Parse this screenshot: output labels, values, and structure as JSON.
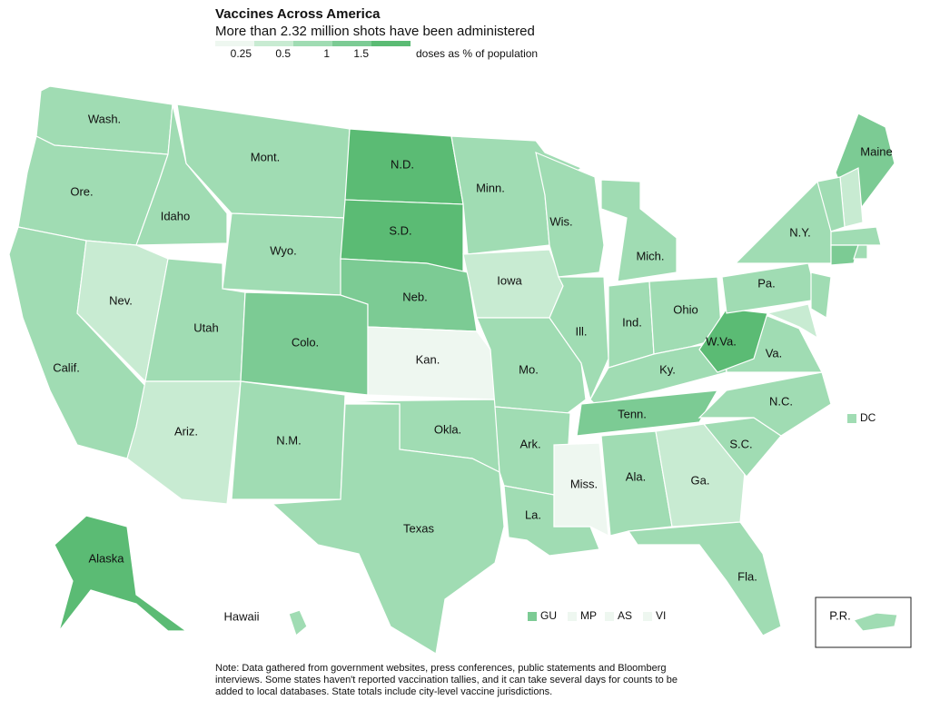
{
  "title": "Vaccines Across America",
  "subtitle": "More than 2.32 million shots have been administered",
  "legend": {
    "colors": [
      "#eef7f0",
      "#c8ebd2",
      "#a0dcb3",
      "#7ccb94",
      "#5bbb74"
    ],
    "ticks": [
      "0.25",
      "0.5",
      "1",
      "1.5"
    ],
    "unit": "doses as % of population"
  },
  "states": [
    {
      "label": "Wash.",
      "color": "#a0dcb3"
    },
    {
      "label": "Ore.",
      "color": "#a0dcb3"
    },
    {
      "label": "Calif.",
      "color": "#a0dcb3"
    },
    {
      "label": "Nev.",
      "color": "#c8ebd2"
    },
    {
      "label": "Idaho",
      "color": "#a0dcb3"
    },
    {
      "label": "Mont.",
      "color": "#a0dcb3"
    },
    {
      "label": "Wyo.",
      "color": "#a0dcb3"
    },
    {
      "label": "Utah",
      "color": "#a0dcb3"
    },
    {
      "label": "Ariz.",
      "color": "#c8ebd2"
    },
    {
      "label": "Colo.",
      "color": "#7ccb94"
    },
    {
      "label": "N.M.",
      "color": "#a0dcb3"
    },
    {
      "label": "N.D.",
      "color": "#5bbb74"
    },
    {
      "label": "S.D.",
      "color": "#5bbb74"
    },
    {
      "label": "Neb.",
      "color": "#7ccb94"
    },
    {
      "label": "Kan.",
      "color": "#eef7f0"
    },
    {
      "label": "Okla.",
      "color": "#a0dcb3"
    },
    {
      "label": "Texas",
      "color": "#a0dcb3"
    },
    {
      "label": "Minn.",
      "color": "#a0dcb3"
    },
    {
      "label": "Iowa",
      "color": "#c8ebd2"
    },
    {
      "label": "Mo.",
      "color": "#a0dcb3"
    },
    {
      "label": "Ark.",
      "color": "#a0dcb3"
    },
    {
      "label": "La.",
      "color": "#a0dcb3"
    },
    {
      "label": "Wis.",
      "color": "#a0dcb3"
    },
    {
      "label": "Ill.",
      "color": "#a0dcb3"
    },
    {
      "label": "Mich.",
      "color": "#a0dcb3"
    },
    {
      "label": "Ind.",
      "color": "#a0dcb3"
    },
    {
      "label": "Ohio",
      "color": "#a0dcb3"
    },
    {
      "label": "Ky.",
      "color": "#a0dcb3"
    },
    {
      "label": "Tenn.",
      "color": "#7ccb94"
    },
    {
      "label": "Miss.",
      "color": "#eef7f0"
    },
    {
      "label": "Ala.",
      "color": "#a0dcb3"
    },
    {
      "label": "Ga.",
      "color": "#c8ebd2"
    },
    {
      "label": "Fla.",
      "color": "#a0dcb3"
    },
    {
      "label": "S.C.",
      "color": "#a0dcb3"
    },
    {
      "label": "N.C.",
      "color": "#a0dcb3"
    },
    {
      "label": "Va.",
      "color": "#a0dcb3"
    },
    {
      "label": "W.Va.",
      "color": "#5bbb74"
    },
    {
      "label": "Pa.",
      "color": "#a0dcb3"
    },
    {
      "label": "N.Y.",
      "color": "#a0dcb3"
    },
    {
      "label": "Maine",
      "color": "#7ccb94"
    },
    {
      "color": "#c8ebd2"
    },
    {
      "color": "#a0dcb3"
    },
    {
      "color": "#a0dcb3"
    },
    {
      "color": "#7ccb94"
    },
    {
      "color": "#a0dcb3"
    },
    {
      "color": "#a0dcb3"
    },
    {
      "color": "#c8ebd2"
    },
    {
      "label": "Alaska",
      "color": "#5bbb74"
    },
    {
      "label": "Hawaii",
      "color": "#a0dcb3"
    },
    {
      "label": "P.R.",
      "color": "#a0dcb3"
    }
  ],
  "territories": [
    {
      "label": "DC",
      "color": "#a0dcb3"
    },
    {
      "label": "GU",
      "color": "#7ccb94"
    },
    {
      "label": "MP",
      "color": "#eef7f0"
    },
    {
      "label": "AS",
      "color": "#eef7f0"
    },
    {
      "label": "VI",
      "color": "#eef7f0"
    }
  ],
  "note": "Note: Data gathered from government websites, press conferences, public statements and Bloomberg interviews. Some states haven't reported vaccination tallies, and it can take several days for counts to be added to local databases. State totals include city-level vaccine jurisdictions."
}
